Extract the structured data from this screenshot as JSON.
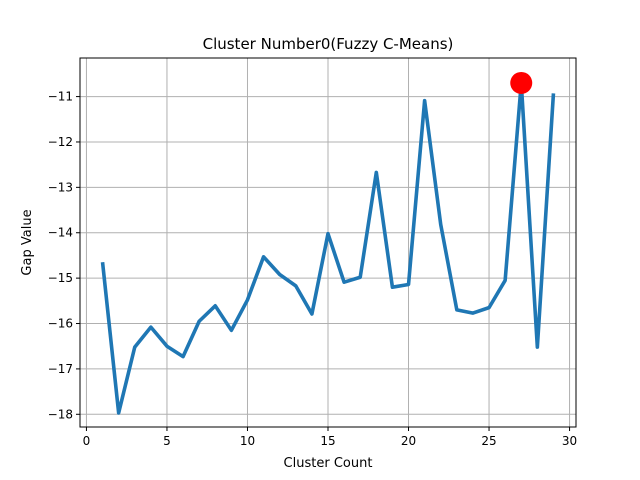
{
  "chart_data": {
    "type": "line",
    "title": "Cluster Number0(Fuzzy C-Means)",
    "xlabel": "Cluster Count",
    "ylabel": "Gap Value",
    "xlim": [
      -0.4,
      30.4
    ],
    "ylim": [
      -18.28,
      -10.15
    ],
    "xticks": [
      0,
      5,
      10,
      15,
      20,
      25,
      30
    ],
    "xtick_labels": [
      "0",
      "5",
      "10",
      "15",
      "20",
      "25",
      "30"
    ],
    "yticks": [
      -18,
      -17,
      -16,
      -15,
      -14,
      -13,
      -12,
      -11
    ],
    "ytick_labels": [
      "−18",
      "−17",
      "−16",
      "−15",
      "−14",
      "−13",
      "−12",
      "−11"
    ],
    "grid": true,
    "series": [
      {
        "color": "#1f77b4",
        "x": [
          1,
          2,
          3,
          4,
          5,
          6,
          7,
          8,
          9,
          10,
          11,
          12,
          13,
          14,
          15,
          16,
          17,
          18,
          19,
          20,
          21,
          22,
          23,
          24,
          25,
          26,
          27,
          28,
          29
        ],
        "y": [
          -14.65,
          -17.97,
          -16.52,
          -16.08,
          -16.5,
          -16.73,
          -15.95,
          -15.61,
          -16.15,
          -15.48,
          -14.53,
          -14.92,
          -15.17,
          -15.79,
          -14.02,
          -15.09,
          -14.98,
          -12.67,
          -15.2,
          -15.14,
          -11.09,
          -13.82,
          -15.7,
          -15.77,
          -15.65,
          -15.05,
          -10.7,
          -16.52,
          -10.93
        ]
      }
    ],
    "highlight": {
      "x": 27,
      "y": -10.7,
      "color": "#ff0000"
    }
  }
}
